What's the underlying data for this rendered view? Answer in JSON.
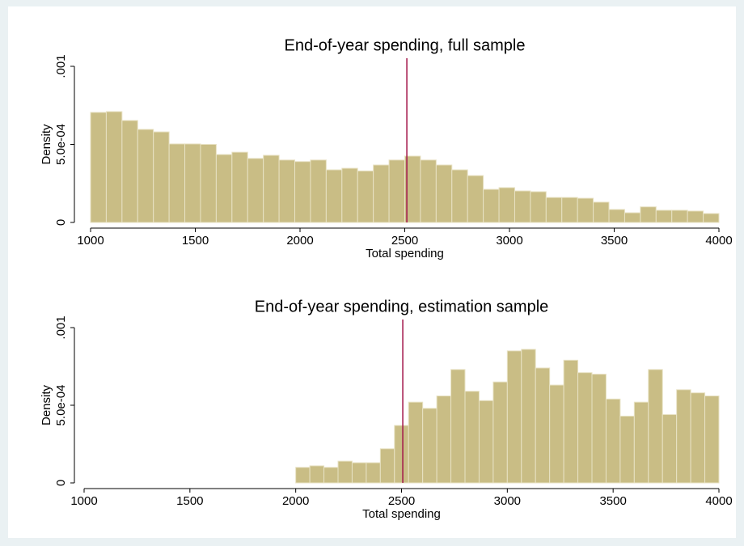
{
  "chart_data": [
    {
      "type": "histogram",
      "title": "End-of-year spending, full sample",
      "xlabel": "Total spending",
      "ylabel": "Density",
      "bins": [
        1000,
        1075,
        1150,
        1225,
        1300,
        1375,
        1450,
        1525,
        1600,
        1675,
        1750,
        1825,
        1900,
        1975,
        2050,
        2125,
        2200,
        2275,
        2350,
        2425,
        2500,
        2575,
        2650,
        2725,
        2800,
        2875,
        2950,
        3025,
        3100,
        3175,
        3250,
        3325,
        3400,
        3475,
        3550,
        3625,
        3700,
        3775,
        3850,
        3925,
        4000
      ],
      "values": [
        0.000705,
        0.00071,
        0.000653,
        0.000596,
        0.00058,
        0.000503,
        0.000503,
        0.0005,
        0.000435,
        0.00045,
        0.00041,
        0.00043,
        0.0004,
        0.00039,
        0.0004,
        0.000337,
        0.000347,
        0.00033,
        0.000368,
        0.0004,
        0.000425,
        0.0004,
        0.000368,
        0.000337,
        0.0003,
        0.000212,
        0.000223,
        0.000202,
        0.000197,
        0.00016,
        0.00016,
        0.000155,
        0.00013,
        8.3e-05,
        6.2e-05,
        0.0001,
        7.8e-05,
        7.8e-05,
        7.3e-05,
        5.7e-05
      ],
      "color": "#c9bd85",
      "vline": 2510,
      "vline_color": "#a3164a",
      "xlim": [
        1000,
        4000
      ],
      "xticks": [
        1000,
        1500,
        2000,
        2500,
        3000,
        3500,
        4000
      ],
      "ylim": [
        0,
        0.001
      ],
      "yticks": [
        0,
        {
          "value": 0.0005,
          "label": "5.0e-04"
        },
        {
          "value": 0.001,
          "label": ".001"
        }
      ]
    },
    {
      "type": "histogram",
      "title": "End-of-year spending, estimation sample",
      "xlabel": "Total spending",
      "ylabel": "Density",
      "bins": [
        2000,
        2066.67,
        2133.33,
        2200,
        2266.67,
        2333.33,
        2400,
        2466.67,
        2533.33,
        2600,
        2666.67,
        2733.33,
        2800,
        2866.67,
        2933.33,
        3000,
        3066.67,
        3133.33,
        3200,
        3266.67,
        3333.33,
        3400,
        3466.67,
        3533.33,
        3600,
        3666.67,
        3733.33,
        3800,
        3866.67,
        3933.33,
        4000
      ],
      "values": [
        0.0001,
        0.00011,
        0.0001,
        0.00014,
        0.00013,
        0.00013,
        0.00022,
        0.00037,
        0.00052,
        0.00048,
        0.00056,
        0.00073,
        0.00059,
        0.00053,
        0.00065,
        0.00085,
        0.00086,
        0.00074,
        0.00063,
        0.00079,
        0.00071,
        0.0007,
        0.00054,
        0.00043,
        0.00052,
        0.00073,
        0.00044,
        0.0006,
        0.00058,
        0.00056
      ],
      "color": "#c9bd85",
      "vline": 2506,
      "vline_color": "#a3164a",
      "xlim": [
        1000,
        4000
      ],
      "xticks": [
        1000,
        1500,
        2000,
        2500,
        3000,
        3500,
        4000
      ],
      "ylim": [
        0,
        0.001
      ],
      "yticks": [
        0,
        {
          "value": 0.0005,
          "label": "5.0e-04"
        },
        {
          "value": 0.001,
          "label": ".001"
        }
      ]
    }
  ]
}
